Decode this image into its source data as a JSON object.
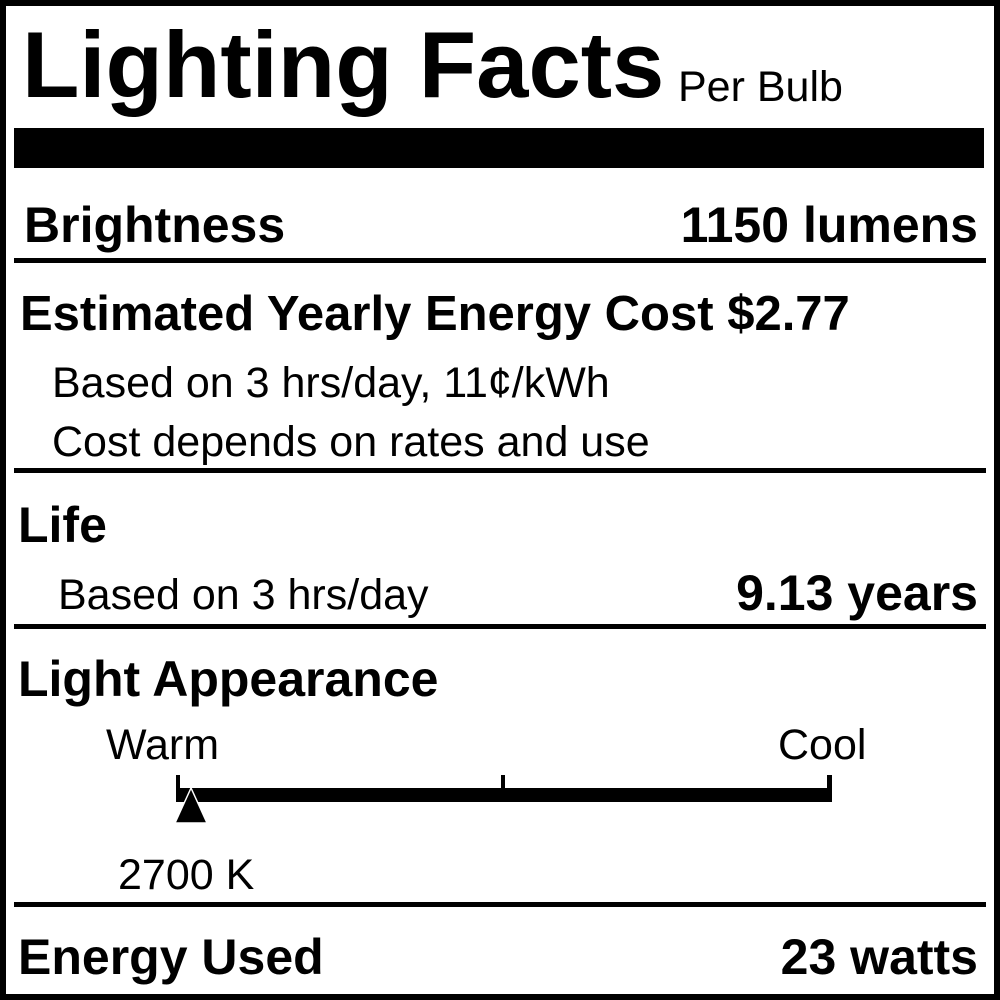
{
  "header": {
    "title": "Lighting Facts",
    "subtitle": "Per Bulb"
  },
  "brightness": {
    "label": "Brightness",
    "value": "1150 lumens"
  },
  "energy_cost": {
    "label": "Estimated Yearly Energy Cost",
    "value": "$2.77",
    "note1": "Based on 3 hrs/day, 11¢/kWh",
    "note2": "Cost depends on rates and use"
  },
  "life": {
    "label": "Life",
    "note": "Based on 3 hrs/day",
    "value": "9.13 years"
  },
  "light_appearance": {
    "label": "Light Appearance",
    "warm_label": "Warm",
    "cool_label": "Cool",
    "value": "2700 K",
    "position_fraction": 0.02
  },
  "energy_used": {
    "label": "Energy Used",
    "value": "23 watts"
  },
  "colors": {
    "ink": "#000000",
    "background": "#ffffff"
  }
}
